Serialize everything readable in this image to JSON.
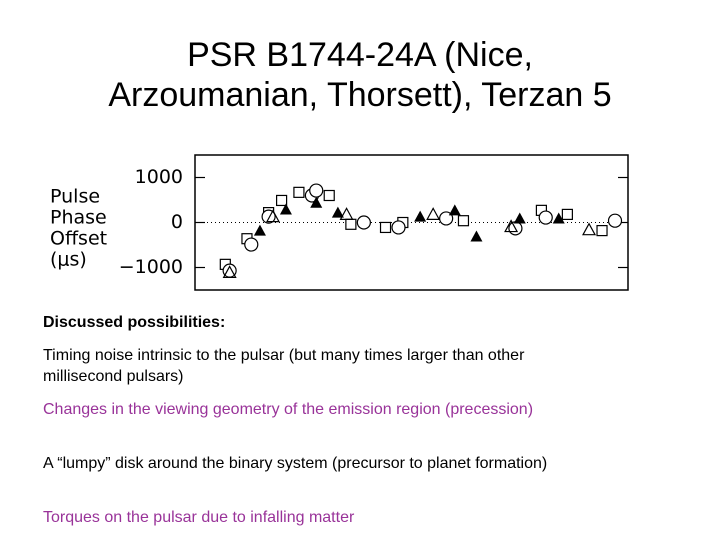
{
  "header": {
    "title_lines": [
      "PSR B1744-24A (Nice,",
      "Arzoumanian, Thorsett), Terzan 5"
    ]
  },
  "chart_data": {
    "type": "scatter",
    "ylabel_lines": [
      "Pulse",
      "Phase",
      "Offset",
      "(μs)"
    ],
    "xlim": [
      0,
      100
    ],
    "ylim": [
      -1500,
      1500
    ],
    "yticks": [
      1000,
      0,
      {
        "value": -1000,
        "label": "−1000"
      }
    ],
    "zero_line": true,
    "series": [
      {
        "marker": "square",
        "color": "#000000",
        "x": [
          7,
          12,
          17,
          20,
          24,
          31,
          36,
          44,
          48,
          62,
          80,
          86,
          94
        ],
        "values": [
          -930,
          -360,
          220,
          490,
          670,
          600,
          -40,
          -110,
          0,
          40,
          270,
          180,
          -180
        ]
      },
      {
        "marker": "circle",
        "color": "#000000",
        "x": [
          8,
          13,
          17,
          27,
          28,
          39,
          47,
          58,
          74,
          81,
          97
        ],
        "values": [
          -1070,
          -490,
          130,
          600,
          710,
          0,
          -110,
          90,
          -130,
          110,
          40
        ]
      },
      {
        "marker": "filled-triangle",
        "color": "#000000",
        "x": [
          15,
          21,
          28,
          33,
          52,
          60,
          65,
          75,
          84
        ],
        "values": [
          -180,
          290,
          440,
          220,
          130,
          270,
          -310,
          90,
          90
        ]
      },
      {
        "marker": "triangle",
        "color": "#000000",
        "x": [
          8,
          18,
          35,
          55,
          73,
          91
        ],
        "values": [
          -1110,
          130,
          180,
          180,
          -90,
          -160
        ]
      }
    ]
  },
  "body": {
    "heading": "Discussed possibilities:",
    "items": [
      {
        "text": "Timing noise intrinsic to the pulsar (but many times larger than other millisecond pulsars)",
        "color": "#000000"
      },
      {
        "text": "Changes in the viewing geometry of the emission region (precession)",
        "color": "#993399"
      },
      {
        "text": "A “lumpy” disk around the binary system (precursor to planet formation)",
        "color": "#000000"
      },
      {
        "text": "Torques on the pulsar due to infalling matter",
        "color": "#993399"
      }
    ]
  }
}
